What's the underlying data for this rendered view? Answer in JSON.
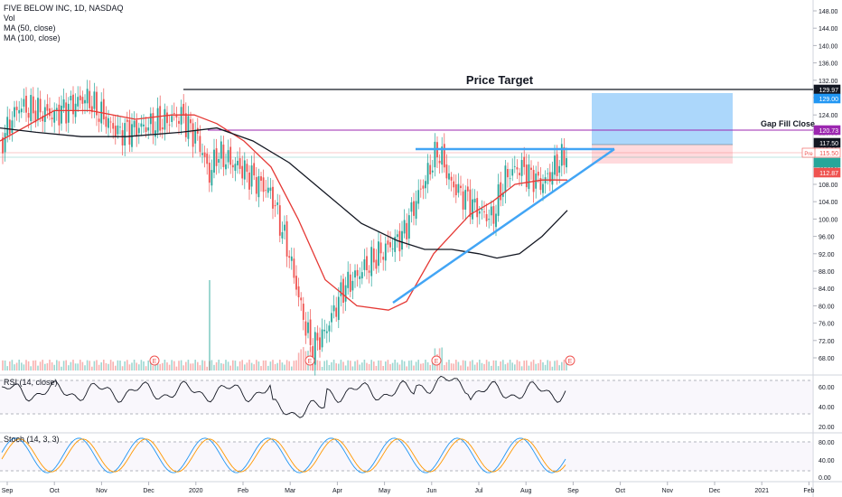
{
  "header": {
    "symbol": "FIVE BELOW INC, 1D, NASDAQ",
    "volume": "Vol",
    "ma50": "MA (50, close)",
    "ma100": "MA (100, close)"
  },
  "annotations": {
    "price_target": "Price Target",
    "gap_fill": "Gap Fill Close",
    "earnings_marker": "E"
  },
  "indicators": {
    "rsi_label": "RSI (14, close)",
    "stoch_label": "Stoch (14, 3, 3)"
  },
  "price_axis": {
    "ticks": [
      "148.00",
      "144.00",
      "140.00",
      "136.00",
      "132.00",
      "128.00",
      "124.00",
      "120.00",
      "116.00",
      "112.00",
      "108.00",
      "104.00",
      "100.00",
      "96.00",
      "92.00",
      "88.00",
      "84.00",
      "80.00",
      "76.00",
      "72.00",
      "68.00"
    ],
    "rsi_ticks": [
      "60.00",
      "40.00",
      "20.00"
    ],
    "stoch_ticks": [
      "80.00",
      "40.00",
      "0.00"
    ],
    "tags": [
      {
        "id": "target",
        "label": "129.97",
        "bg": "#131722",
        "fg": "#ffffff"
      },
      {
        "id": "tp",
        "label": "129.00",
        "bg": "#2196f3",
        "fg": "#ffffff"
      },
      {
        "id": "gap",
        "label": "120.73",
        "bg": "#9c27b0",
        "fg": "#ffffff"
      },
      {
        "id": "tri",
        "label": "117.50",
        "bg": "#131722",
        "fg": "#ffffff"
      },
      {
        "id": "last",
        "label": "115.50",
        "bg": "#ffffff",
        "fg": "#ef5350",
        "prefix": "Pre"
      },
      {
        "id": "ma50v",
        "label": "",
        "bg": "#26a69a",
        "fg": "#ffffff"
      },
      {
        "id": "stop",
        "label": "112.87",
        "bg": "#ef5350",
        "fg": "#ffffff"
      }
    ]
  },
  "time_axis": [
    "Sep",
    "Oct",
    "Nov",
    "Dec",
    "2020",
    "Feb",
    "Mar",
    "Apr",
    "May",
    "Jun",
    "Jul",
    "Aug",
    "Sep",
    "Oct",
    "Nov",
    "Dec",
    "2021",
    "Feb"
  ],
  "colors": {
    "up": "#26a69a",
    "down": "#ef5350",
    "ma50": "#e53935",
    "ma100": "#131722",
    "target_line": "#131722",
    "gap_line": "#9c27b0",
    "triangle": "#42a5f5",
    "tp_zone": "#90caf9",
    "sl_zone": "#ffcdd2"
  },
  "chart_data": {
    "type": "candlestick",
    "title": "FIVE BELOW INC, 1D, NASDAQ",
    "y_range": [
      65,
      150
    ],
    "levels": {
      "price_target": 129.97,
      "gap_fill_close": 120.73,
      "triangle_top": 117.5,
      "last": 115.5,
      "stop": 112.87,
      "take_profit": 129.0
    },
    "close_series": [
      {
        "date": "2019-09",
        "value": 118
      },
      {
        "date": "2019-10",
        "value": 124
      },
      {
        "date": "2019-11",
        "value": 128
      },
      {
        "date": "2019-12",
        "value": 120
      },
      {
        "date": "2020-01",
        "value": 124
      },
      {
        "date": "2020-01-15",
        "value": 114
      },
      {
        "date": "2020-02",
        "value": 110
      },
      {
        "date": "2020-03",
        "value": 80
      },
      {
        "date": "2020-03-20",
        "value": 70
      },
      {
        "date": "2020-04",
        "value": 76
      },
      {
        "date": "2020-04-20",
        "value": 84
      },
      {
        "date": "2020-05",
        "value": 92
      },
      {
        "date": "2020-05-20",
        "value": 100
      },
      {
        "date": "2020-06",
        "value": 115
      },
      {
        "date": "2020-06-15",
        "value": 108
      },
      {
        "date": "2020-07",
        "value": 104
      },
      {
        "date": "2020-07-15",
        "value": 100
      },
      {
        "date": "2020-08",
        "value": 112
      },
      {
        "date": "2020-08-15",
        "value": 110
      },
      {
        "date": "2020-09",
        "value": 115.5
      }
    ]
  }
}
